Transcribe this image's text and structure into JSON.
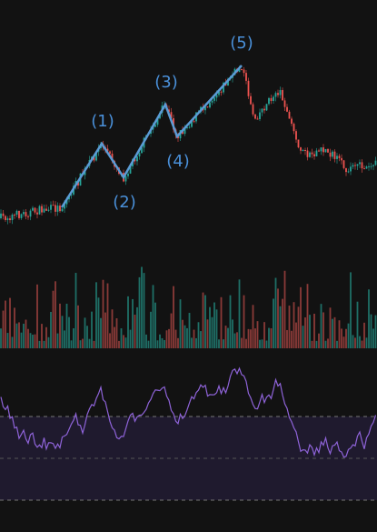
{
  "waves": [
    {
      "label": "(1)"
    },
    {
      "label": "(2)"
    },
    {
      "label": "(3)"
    },
    {
      "label": "(4)"
    },
    {
      "label": "(5)"
    }
  ]
}
